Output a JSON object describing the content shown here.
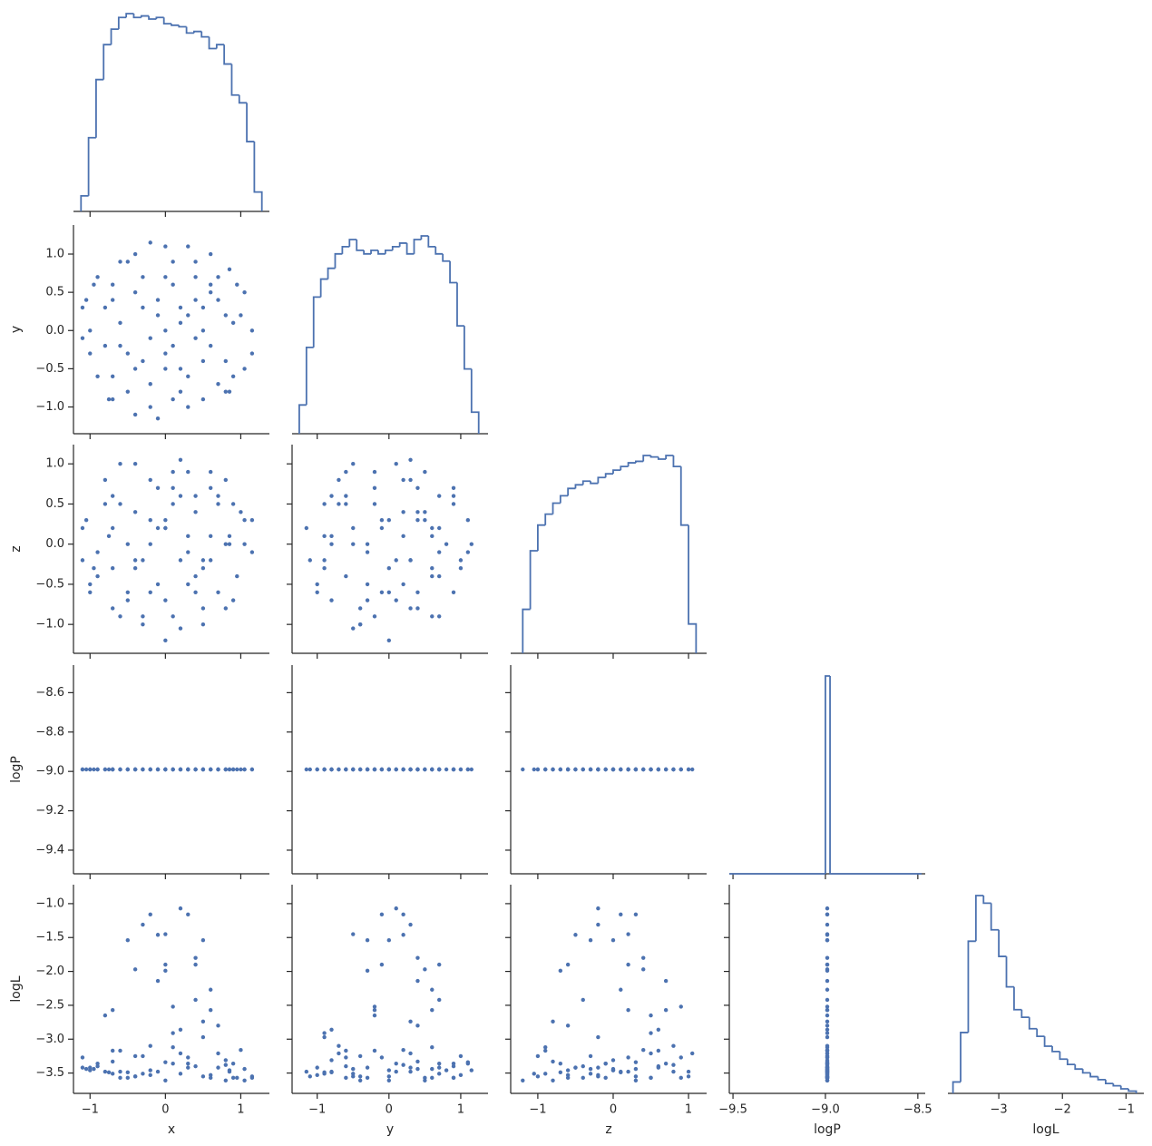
{
  "chart_data": {
    "type": "pairplot",
    "color": "#4c72b0",
    "variables": [
      {
        "name": "x",
        "lim": [
          -1.22,
          1.38
        ],
        "xticks": [
          {
            "value": -1,
            "label": "−1"
          },
          0,
          1
        ],
        "hist": {
          "bins": [
            -1.12,
            -1.02,
            -0.92,
            -0.82,
            -0.72,
            -0.62,
            -0.52,
            -0.42,
            -0.32,
            -0.22,
            -0.12,
            -0.02,
            0.08,
            0.18,
            0.28,
            0.38,
            0.48,
            0.58,
            0.68,
            0.78,
            0.88,
            0.98,
            1.08,
            1.18,
            1.28
          ],
          "counts": [
            20,
            95,
            170,
            215,
            235,
            250,
            255,
            250,
            252,
            248,
            250,
            242,
            240,
            238,
            230,
            232,
            225,
            210,
            215,
            190,
            150,
            140,
            90,
            25
          ]
        },
        "values": [
          0.5,
          -0.7,
          0.1,
          -0.3,
          1.0,
          -1.0,
          0.7,
          0.0,
          -0.5,
          0.3,
          -0.2,
          0.85,
          -0.75,
          0.2,
          1.15,
          -1.05,
          0.4,
          -0.4,
          0.6,
          -0.6,
          0.1,
          0.8,
          -0.9,
          0.3,
          0.5,
          -0.4,
          0.6,
          -0.7,
          1.05,
          -1.1,
          0.0,
          -0.2,
          0.2,
          -0.1,
          0.85,
          -0.6,
          0.4,
          -0.3,
          0.7,
          -0.9,
          1.15,
          -0.5,
          0.0,
          0.1,
          -0.8,
          0.3,
          0.6,
          -0.2,
          0.9,
          -0.6,
          0.2,
          -0.1,
          0.5,
          -1.0,
          0.0,
          0.7,
          -0.4,
          1.05,
          -0.7,
          0.4,
          -0.5,
          0.8,
          0.1,
          -0.3,
          0.5,
          -0.95,
          0.9,
          -0.2,
          0.3,
          -0.8,
          0.6,
          -0.1,
          0.95,
          -0.7,
          0.2,
          -0.4,
          0.0,
          0.8,
          -1.1,
          0.4
        ]
      },
      {
        "name": "y",
        "lim": [
          -1.35,
          1.38
        ],
        "xticks": [
          {
            "value": -1,
            "label": "−1"
          },
          0,
          1
        ],
        "yticks": [
          {
            "value": -1.0,
            "label": "−1.0"
          },
          {
            "value": -0.5,
            "label": "−0.5"
          },
          {
            "value": 0,
            "label": "0.0"
          },
          0.5,
          {
            "value": 1.0,
            "label": "1.0"
          }
        ],
        "hist": {
          "bins": [
            -1.25,
            -1.15,
            -1.05,
            -0.95,
            -0.85,
            -0.75,
            -0.65,
            -0.55,
            -0.45,
            -0.35,
            -0.25,
            -0.15,
            -0.05,
            0.05,
            0.15,
            0.25,
            0.35,
            0.45,
            0.55,
            0.65,
            0.75,
            0.85,
            0.95,
            1.05,
            1.15,
            1.25
          ],
          "counts": [
            40,
            120,
            190,
            215,
            230,
            250,
            260,
            270,
            255,
            250,
            255,
            250,
            255,
            260,
            265,
            250,
            270,
            275,
            260,
            250,
            240,
            210,
            150,
            90,
            30
          ]
        },
        "values": [
          0.3,
          0.6,
          -0.9,
          -0.4,
          0.2,
          -0.3,
          -0.7,
          1.1,
          0.9,
          0.2,
          -0.1,
          0.8,
          -0.9,
          -0.5,
          -0.3,
          0.4,
          0.9,
          -1.1,
          0.5,
          0.1,
          0.6,
          -0.4,
          0.7,
          -1.0,
          0.0,
          0.5,
          -0.2,
          -0.6,
          0.5,
          -0.1,
          -0.3,
          1.15,
          0.3,
          -1.15,
          -0.8,
          -0.2,
          0.7,
          0.3,
          0.4,
          -0.6,
          0.0,
          -0.8,
          0.0,
          0.9,
          0.3,
          -0.6,
          1.0,
          -0.7,
          0.1,
          0.9,
          0.1,
          0.4,
          -0.9,
          0.0,
          -0.5,
          0.7,
          1.0,
          -0.5,
          -0.9,
          0.4,
          -0.3,
          0.2,
          -0.2,
          0.7,
          -0.4,
          0.6,
          -0.6,
          -1.0,
          1.1,
          -0.2,
          0.6,
          0.2,
          0.6,
          0.4,
          -0.8,
          -0.5,
          0.7,
          -0.8,
          0.3,
          -0.1
        ]
      },
      {
        "name": "z",
        "lim": [
          -1.36,
          1.24
        ],
        "xticks": [
          {
            "value": -1,
            "label": "−1"
          },
          0,
          1
        ],
        "yticks": [
          {
            "value": -1.0,
            "label": "−1.0"
          },
          {
            "value": -0.5,
            "label": "−0.5"
          },
          {
            "value": 0,
            "label": "0.0"
          },
          0.5,
          {
            "value": 1.0,
            "label": "1.0"
          }
        ],
        "hist": {
          "bins": [
            -1.2,
            -1.1,
            -1.0,
            -0.9,
            -0.8,
            -0.7,
            -0.6,
            -0.5,
            -0.4,
            -0.3,
            -0.2,
            -0.1,
            0.0,
            0.1,
            0.2,
            0.3,
            0.4,
            0.5,
            0.6,
            0.7,
            0.8,
            0.9,
            1.0,
            1.1
          ],
          "counts": [
            60,
            140,
            175,
            190,
            205,
            215,
            225,
            230,
            235,
            232,
            240,
            245,
            250,
            255,
            260,
            262,
            270,
            268,
            265,
            270,
            255,
            175,
            40
          ]
        },
        "values": [
          -0.8,
          0.2,
          0.5,
          -1.0,
          0.4,
          -0.5,
          0.5,
          0.3,
          -0.6,
          0.1,
          0.3,
          0.0,
          0.1,
          -1.05,
          -0.1,
          0.3,
          0.6,
          -0.2,
          0.9,
          1.0,
          -0.9,
          -0.8,
          -0.1,
          -0.5,
          -0.3,
          0.4,
          0.7,
          0.6,
          0.3,
          0.2,
          -0.7,
          0.0,
          1.05,
          0.2,
          0.1,
          -0.9,
          -0.4,
          -0.2,
          -0.6,
          -0.4,
          0.3,
          -0.7,
          -1.2,
          0.7,
          0.8,
          0.9,
          -0.2,
          0.8,
          -0.7,
          0.5,
          -0.2,
          0.7,
          -0.2,
          -0.6,
          0.2,
          0.6,
          -0.3,
          0.0,
          -0.3,
          0.4,
          0.0,
          0.8,
          0.9,
          -0.9,
          -1.0,
          -0.3,
          0.5,
          -0.6,
          -0.1,
          0.5,
          0.1,
          -0.5,
          -0.4,
          -0.8,
          0.6,
          1.0,
          0.2,
          0.0,
          -0.2,
          -0.6
        ]
      },
      {
        "name": "logP",
        "lim": [
          -9.52,
          -8.46
        ],
        "xticks": [
          {
            "value": -9.5,
            "label": "−9.5"
          },
          {
            "value": -9.0,
            "label": "−9.0"
          },
          {
            "value": -8.5,
            "label": "−8.5"
          }
        ],
        "yticks": [
          {
            "value": -9.4,
            "label": "−9.4"
          },
          {
            "value": -9.2,
            "label": "−9.2"
          },
          {
            "value": -9.0,
            "label": "−9.0"
          },
          {
            "value": -8.8,
            "label": "−8.8"
          },
          {
            "value": -8.6,
            "label": "−8.6"
          }
        ],
        "hist": {
          "bins": [
            -9.52,
            -9.0,
            -8.975,
            -8.48
          ],
          "counts": [
            0,
            100,
            0
          ]
        },
        "values": [
          -8.99,
          -8.99,
          -8.99,
          -8.99,
          -8.99,
          -8.99,
          -8.99,
          -8.99,
          -8.99,
          -8.99,
          -8.99,
          -8.99,
          -8.99,
          -8.99,
          -8.99,
          -8.99,
          -8.99,
          -8.99,
          -8.99,
          -8.99,
          -8.99,
          -8.99,
          -8.99,
          -8.99,
          -8.99,
          -8.99,
          -8.99,
          -8.99,
          -8.99,
          -8.99,
          -8.99,
          -8.99,
          -8.99,
          -8.99,
          -8.99,
          -8.99,
          -8.99,
          -8.99,
          -8.99,
          -8.99,
          -8.99,
          -8.99,
          -8.99,
          -8.99,
          -8.99,
          -8.99,
          -8.99,
          -8.99,
          -8.99,
          -8.99,
          -8.99,
          -8.99,
          -8.99,
          -8.99,
          -8.99,
          -8.99,
          -8.99,
          -8.99,
          -8.99,
          -8.99,
          -8.99,
          -8.99,
          -8.99,
          -8.99,
          -8.99,
          -8.99,
          -8.99,
          -8.99,
          -8.99,
          -8.99,
          -8.99,
          -8.99,
          -8.99,
          -8.99,
          -8.99,
          -8.99,
          -8.99,
          -8.99,
          -8.99,
          -8.99
        ]
      },
      {
        "name": "logL",
        "lim": [
          -3.8,
          -0.72
        ],
        "xticks": [
          {
            "value": -3,
            "label": "−3"
          },
          {
            "value": -2,
            "label": "−2"
          },
          {
            "value": -1,
            "label": "−1"
          }
        ],
        "yticks": [
          {
            "value": -3.5,
            "label": "−3.5"
          },
          {
            "value": -3.0,
            "label": "−3.0"
          },
          {
            "value": -2.5,
            "label": "−2.5"
          },
          {
            "value": -2.0,
            "label": "−2.0"
          },
          {
            "value": -1.5,
            "label": "−1.5"
          },
          {
            "value": -1.0,
            "label": "−1.0"
          }
        ],
        "hist": {
          "bins": [
            -3.72,
            -3.6,
            -3.48,
            -3.36,
            -3.24,
            -3.12,
            -3.0,
            -2.88,
            -2.76,
            -2.64,
            -2.52,
            -2.4,
            -2.28,
            -2.16,
            -2.04,
            -1.92,
            -1.8,
            -1.68,
            -1.56,
            -1.44,
            -1.32,
            -1.2,
            -1.08,
            -0.96,
            -0.84
          ],
          "counts": [
            15,
            80,
            200,
            260,
            250,
            215,
            180,
            140,
            110,
            100,
            85,
            75,
            62,
            55,
            45,
            38,
            32,
            27,
            22,
            18,
            13,
            10,
            6,
            3
          ]
        },
        "values": [
          -2.74,
          -2.57,
          -2.91,
          -3.25,
          -3.16,
          -3.42,
          -3.21,
          -3.34,
          -3.57,
          -1.16,
          -1.16,
          -3.46,
          -3.49,
          -3.51,
          -3.57,
          -3.44,
          -3.4,
          -3.55,
          -3.57,
          -3.48,
          -3.12,
          -3.61,
          -3.36,
          -3.42,
          -1.54,
          -1.97,
          -2.57,
          -3.17,
          -3.61,
          -3.27,
          -1.99,
          -3.46,
          -3.21,
          -3.48,
          -3.48,
          -3.17,
          -2.42,
          -1.31,
          -2.8,
          -3.4,
          -3.55,
          -3.49,
          -3.61,
          -3.36,
          -3.48,
          -3.27,
          -3.53,
          -3.1,
          -3.36,
          -3.57,
          -1.07,
          -2.14,
          -2.97,
          -3.46,
          -1.45,
          -3.42,
          -3.25,
          -3.44,
          -3.51,
          -1.8,
          -1.54,
          -3.38,
          -2.52,
          -3.51,
          -3.55,
          -3.44,
          -3.57,
          -3.53,
          -3.36,
          -2.65,
          -2.27,
          -1.46,
          -3.57,
          -3.33,
          -2.86,
          -3.55,
          -1.9,
          -3.31,
          -3.42,
          -1.9
        ]
      }
    ]
  }
}
